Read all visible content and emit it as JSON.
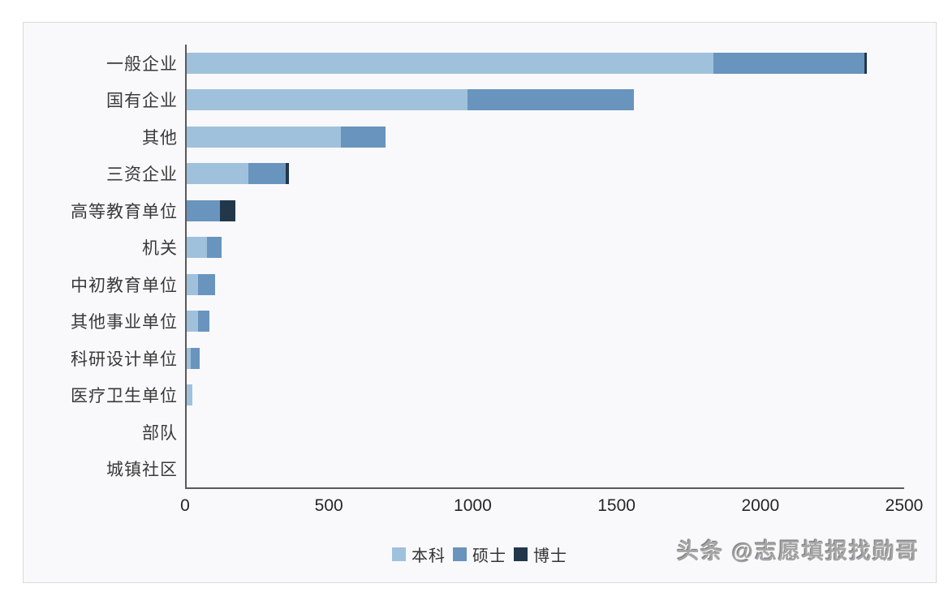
{
  "chart_data": {
    "type": "bar",
    "orientation": "horizontal",
    "stacked": true,
    "title": "",
    "xlabel": "",
    "ylabel": "",
    "xlim": [
      0,
      2500
    ],
    "xticks": [
      0,
      500,
      1000,
      1500,
      2000,
      2500
    ],
    "grid": false,
    "legend_position": "bottom-center",
    "categories": [
      "一般企业",
      "国有企业",
      "其他",
      "三资企业",
      "高等教育单位",
      "机关",
      "中初教育单位",
      "其他事业单位",
      "科研设计单位",
      "医疗卫生单位",
      "部队",
      "城镇社区"
    ],
    "series": [
      {
        "key": "bachelor",
        "name": "本科",
        "color": "#9fc1dc",
        "values": [
          1830,
          975,
          535,
          215,
          0,
          70,
          40,
          40,
          15,
          20,
          0,
          0
        ]
      },
      {
        "key": "master",
        "name": "硕士",
        "color": "#6994bd",
        "values": [
          525,
          580,
          155,
          130,
          115,
          50,
          60,
          40,
          30,
          0,
          0,
          0
        ]
      },
      {
        "key": "doctor",
        "name": "博士",
        "color": "#22374a",
        "values": [
          10,
          0,
          0,
          10,
          55,
          0,
          0,
          0,
          0,
          0,
          0,
          0
        ]
      }
    ]
  },
  "watermark": {
    "text": "头条 @志愿填报找勋哥"
  },
  "colors": {
    "axis": "#595959",
    "panel_border": "#d9d9d9",
    "panel_bg": "#f9f9fb",
    "category_label": "#3a3a3a",
    "tick_label": "#262626"
  }
}
